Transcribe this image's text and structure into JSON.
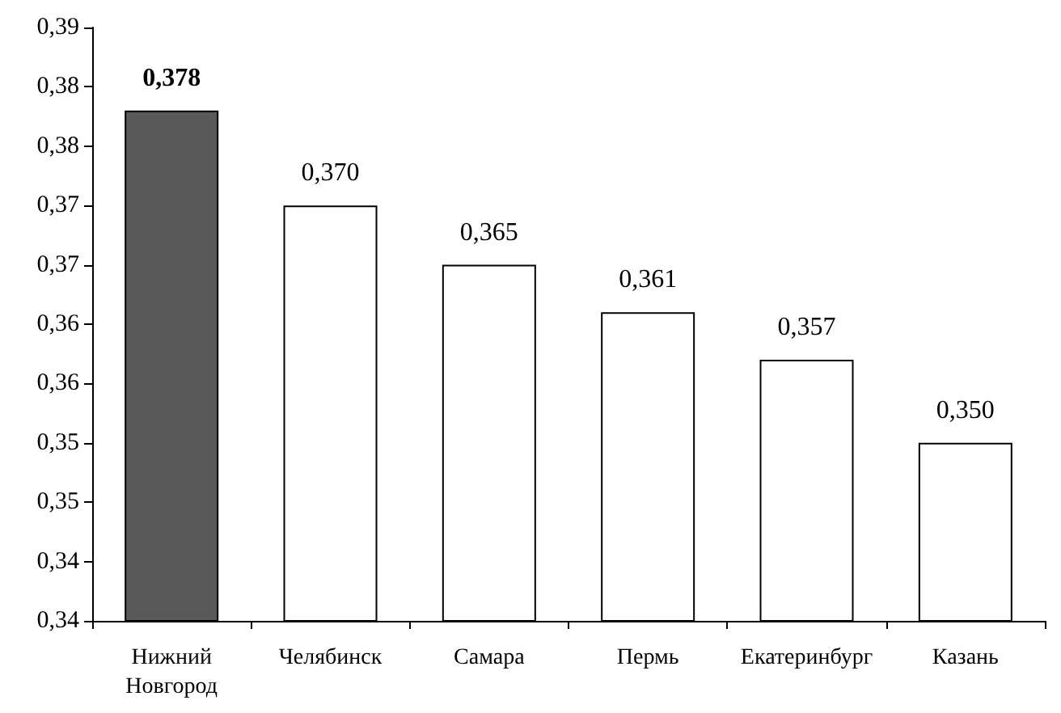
{
  "chart_data": {
    "type": "bar",
    "categories": [
      "Нижний Новгород",
      "Челябинск",
      "Самара",
      "Пермь",
      "Екатеринбург",
      "Казань"
    ],
    "values": [
      0.378,
      0.37,
      0.365,
      0.361,
      0.357,
      0.35
    ],
    "colors": [
      "#595959",
      "#ffffff",
      "#ffffff",
      "#ffffff",
      "#ffffff",
      "#ffffff"
    ],
    "value_labels": [
      "0,378",
      "0,370",
      "0,365",
      "0,361",
      "0,357",
      "0,350"
    ],
    "ylim": [
      0.335,
      0.385
    ],
    "yticks": [
      {
        "value": 0.335,
        "label": "0,34"
      },
      {
        "value": 0.34,
        "label": "0,34"
      },
      {
        "value": 0.345,
        "label": "0,35"
      },
      {
        "value": 0.35,
        "label": "0,35"
      },
      {
        "value": 0.355,
        "label": "0,36"
      },
      {
        "value": 0.36,
        "label": "0,36"
      },
      {
        "value": 0.365,
        "label": "0,37"
      },
      {
        "value": 0.37,
        "label": "0,37"
      },
      {
        "value": 0.375,
        "label": "0,38"
      },
      {
        "value": 0.38,
        "label": "0,38"
      },
      {
        "value": 0.385,
        "label": "0,39"
      }
    ],
    "grid": false
  }
}
